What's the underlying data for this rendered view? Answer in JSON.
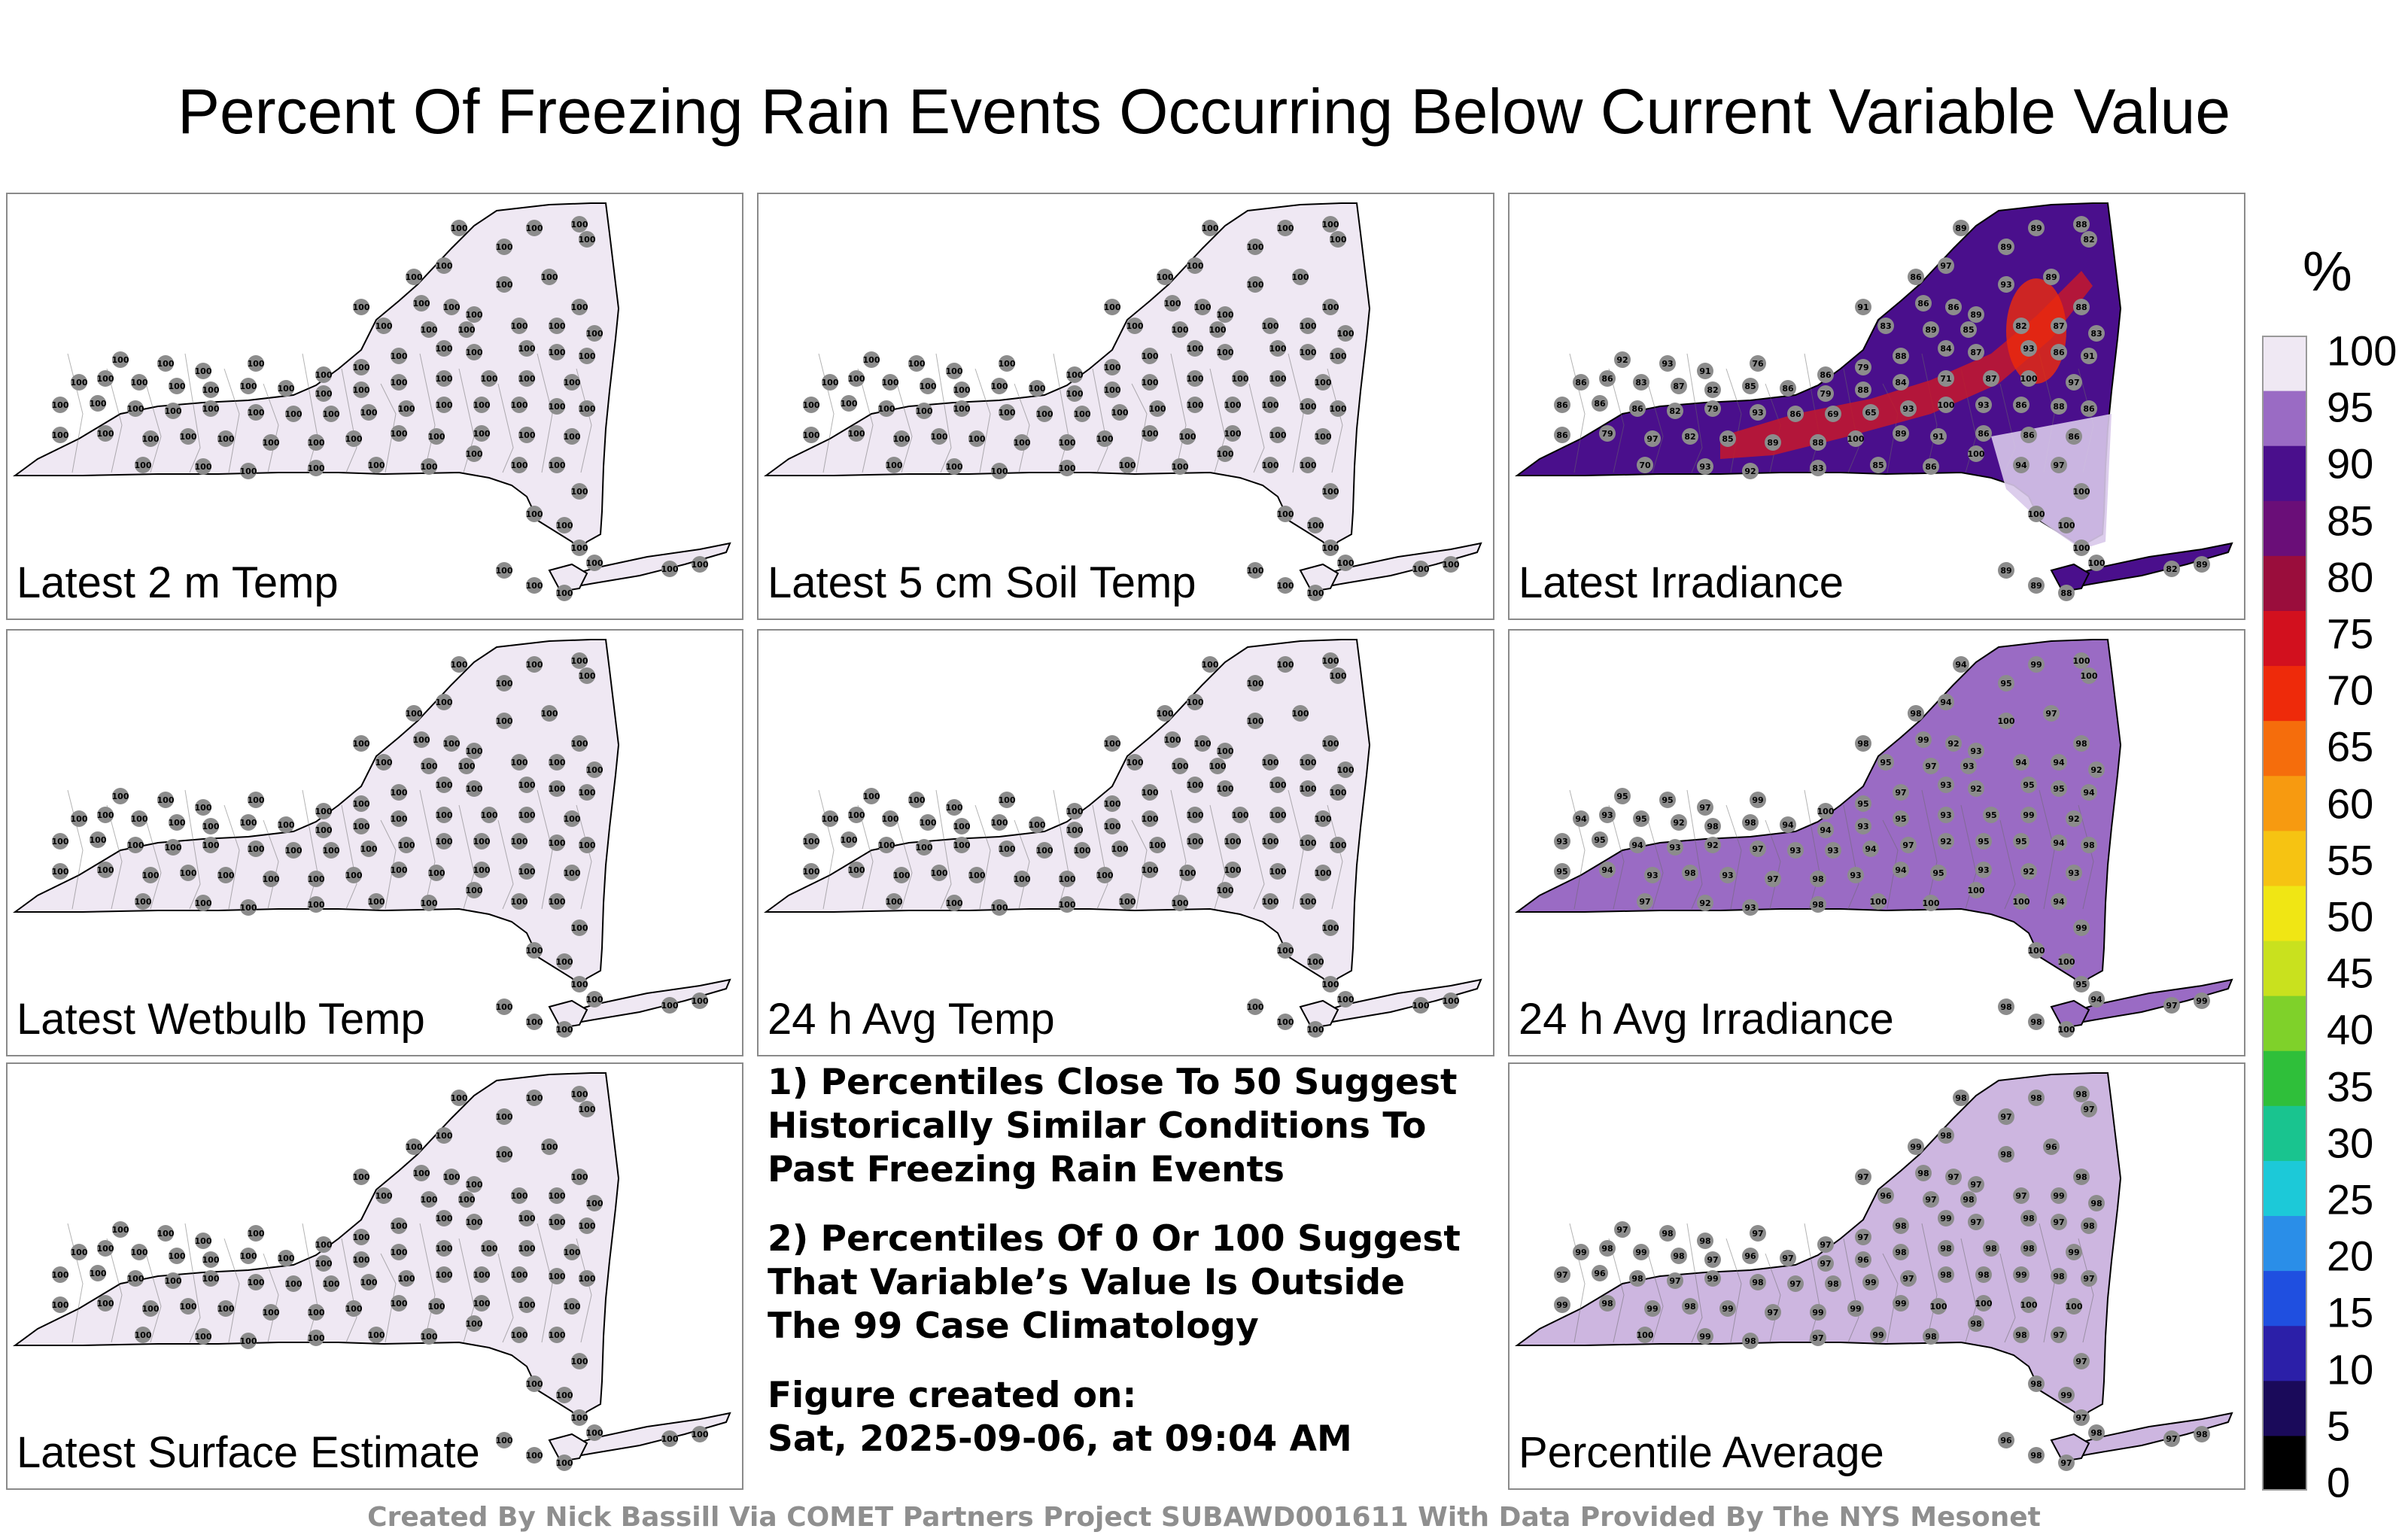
{
  "title": "Percent Of Freezing Rain Events Occurring Below Current Variable Value",
  "panels": [
    {
      "label": "Latest 2 m Temp",
      "fill": "#efe8f3",
      "values": [
        100
      ]
    },
    {
      "label": "Latest 5 cm Soil Temp",
      "fill": "#efe8f3",
      "values": [
        100
      ]
    },
    {
      "label": "Latest Irradiance",
      "fill": "#4a0f8c",
      "values": [
        89,
        89,
        88,
        82,
        89,
        97,
        86,
        91,
        93,
        89,
        86,
        86,
        89,
        88,
        83,
        89,
        85,
        82,
        87,
        83,
        92,
        93,
        91,
        76,
        86,
        79,
        88,
        84,
        87,
        93,
        86,
        91,
        86,
        86,
        83,
        87,
        82,
        85,
        86,
        79,
        88,
        84,
        71,
        87,
        100,
        97,
        86,
        86,
        86,
        82,
        79,
        93,
        86,
        69,
        65,
        93,
        100,
        93,
        86,
        88,
        86,
        86,
        79,
        97,
        82,
        85,
        89,
        88,
        100,
        89,
        91,
        86,
        86,
        86,
        70,
        93,
        92,
        83,
        85,
        86,
        100,
        94,
        97,
        100,
        100,
        100,
        100,
        100
      ]
    },
    {
      "label": "Latest Wetbulb Temp",
      "fill": "#efe8f3",
      "values": [
        100
      ]
    },
    {
      "label": "24 h Avg Temp",
      "fill": "#efe8f3",
      "values": [
        100
      ]
    },
    {
      "label": "24 h Avg Irradiance",
      "fill": "#9a6bc4",
      "values": [
        94,
        99,
        100,
        100,
        95,
        94,
        98,
        98,
        100,
        97,
        99,
        92,
        93,
        98,
        95,
        97,
        93,
        94,
        94,
        92,
        95,
        95,
        97,
        99,
        100,
        95,
        97,
        93,
        92,
        95,
        95,
        94,
        94,
        93,
        95,
        92,
        98,
        98,
        94,
        94,
        93,
        95,
        93,
        95,
        99,
        92,
        93,
        95,
        94,
        93,
        92,
        97,
        93,
        93,
        94,
        97,
        92,
        95,
        95,
        94,
        98,
        95,
        94,
        93,
        98,
        93,
        97,
        98,
        93,
        94,
        95,
        93,
        92,
        93,
        97,
        92,
        93,
        98,
        100,
        100,
        100,
        100
      ]
    },
    {
      "label": "Latest Surface Estimate",
      "fill": "#efe8f3",
      "values": [
        100
      ]
    },
    {
      "label": "Percentile Average",
      "fill": "#cdb6e0",
      "values": [
        98,
        98,
        98,
        97,
        97,
        98,
        99,
        97,
        98,
        96,
        98,
        97,
        97,
        98,
        96,
        97,
        98,
        97,
        99,
        98,
        97,
        98,
        98,
        97,
        97,
        97,
        98,
        99,
        97,
        98,
        97,
        98,
        99,
        98,
        99,
        98,
        97,
        96,
        97,
        97,
        96,
        98,
        98,
        98,
        98,
        99,
        97,
        96,
        98,
        97,
        99,
        98,
        97,
        98,
        99,
        97,
        98,
        98,
        99,
        98,
        97,
        99,
        98,
        99,
        98,
        99,
        97,
        99,
        99,
        99,
        100,
        100,
        100,
        100,
        100,
        99,
        98,
        97,
        99
      ]
    }
  ],
  "notes": [
    "1) Percentiles Close To 50 Suggest\nHistorically Similar Conditions To\nPast Freezing Rain Events",
    "2) Percentiles Of 0 Or 100 Suggest\nThat Variable’s Value Is Outside\nThe 99 Case Climatology",
    "Figure created on:\nSat, 2025-09-06, at 09:04 AM"
  ],
  "colorbar": {
    "title": "%",
    "ticks": [
      "100",
      "95",
      "90",
      "85",
      "80",
      "75",
      "70",
      "65",
      "60",
      "55",
      "50",
      "45",
      "40",
      "35",
      "30",
      "25",
      "20",
      "15",
      "10",
      "5",
      "0"
    ],
    "colors": [
      "#000000",
      "#1a0a5a",
      "#2b1fa8",
      "#1f4fe0",
      "#2a8ee8",
      "#1cc9d8",
      "#19c48f",
      "#2fbf3a",
      "#7fd12a",
      "#c9e11e",
      "#f0e614",
      "#f6c312",
      "#f79a10",
      "#f56d0c",
      "#ee2a0a",
      "#d2101e",
      "#9a0d3c",
      "#6a0e78",
      "#4a0f8c",
      "#9a6bc4",
      "#efe8f3"
    ]
  },
  "footer": "Created By Nick Bassill Via COMET Partners Project SUBAWD001611 With Data Provided By The NYS Mesonet"
}
